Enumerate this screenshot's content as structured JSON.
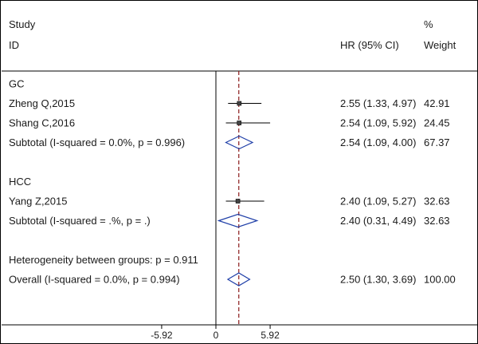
{
  "header": {
    "study_label": "Study",
    "id_label": "ID",
    "effect_label": "HR (95% CI)",
    "weight_symbol": "%",
    "weight_label": "Weight"
  },
  "colors": {
    "text": "#1a1a1a",
    "line": "#000000",
    "reference_line": "#8b1a1a"
  },
  "chart_data": {
    "type": "forest",
    "measure": "HR",
    "axis": {
      "ticks": [
        {
          "value": -5.92,
          "label": "-5.92"
        },
        {
          "value": 0,
          "label": "0"
        },
        {
          "value": 5.92,
          "label": "5.92"
        }
      ],
      "xlim": [
        -10.0,
        10.0
      ]
    },
    "no_effect_line": 0,
    "overall_effect_line": 2.5,
    "rows": [
      {
        "kind": "group",
        "label": "GC"
      },
      {
        "kind": "study",
        "label": "Zheng Q,2015",
        "est": 2.55,
        "lo": 1.33,
        "hi": 4.97,
        "ci_text": "2.55 (1.33, 4.97)",
        "weight": "42.91"
      },
      {
        "kind": "study",
        "label": "Shang C,2016",
        "est": 2.54,
        "lo": 1.09,
        "hi": 5.92,
        "ci_text": "2.54 (1.09, 5.92)",
        "weight": "24.45"
      },
      {
        "kind": "subtotal",
        "label": "Subtotal  (I-squared = 0.0%, p = 0.996)",
        "est": 2.54,
        "lo": 1.09,
        "hi": 4.0,
        "ci_text": "2.54 (1.09, 4.00)",
        "weight": "67.37"
      },
      {
        "kind": "spacer"
      },
      {
        "kind": "group",
        "label": "HCC"
      },
      {
        "kind": "study",
        "label": "Yang Z,2015",
        "est": 2.4,
        "lo": 1.09,
        "hi": 5.27,
        "ci_text": "2.40 (1.09, 5.27)",
        "weight": "32.63"
      },
      {
        "kind": "subtotal",
        "label": "Subtotal  (I-squared = .%, p = .)",
        "est": 2.4,
        "lo": 0.31,
        "hi": 4.49,
        "ci_text": "2.40 (0.31, 4.49)",
        "weight": "32.63"
      },
      {
        "kind": "spacer"
      },
      {
        "kind": "note",
        "label": "Heterogeneity between groups: p = 0.911"
      },
      {
        "kind": "overall",
        "label": "Overall  (I-squared = 0.0%, p = 0.994)",
        "est": 2.5,
        "lo": 1.3,
        "hi": 3.69,
        "ci_text": "2.50 (1.30, 3.69)",
        "weight": "100.00"
      }
    ]
  }
}
